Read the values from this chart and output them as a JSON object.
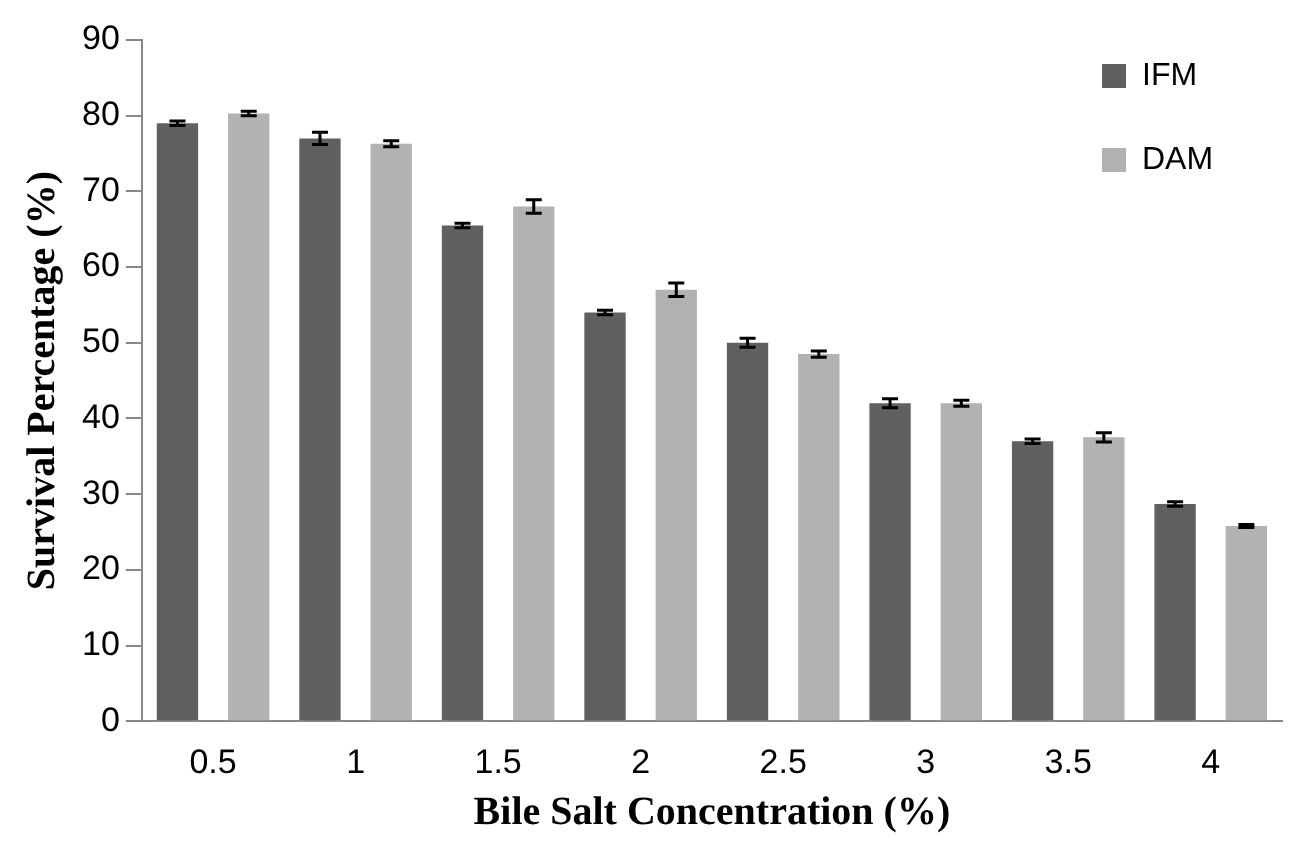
{
  "chart_data": {
    "type": "bar",
    "xlabel": "Bile Salt Concentration (%)",
    "ylabel": "Survival Percentage (%)",
    "categories": [
      "0.5",
      "1",
      "1.5",
      "2",
      "2.5",
      "3",
      "3.5",
      "4"
    ],
    "series": [
      {
        "name": "IFM",
        "color": "#606060",
        "values": [
          79,
          77,
          65.5,
          54,
          50,
          42,
          37,
          28.7
        ],
        "errors": [
          0.3,
          0.8,
          0.3,
          0.3,
          0.6,
          0.6,
          0.3,
          0.3
        ]
      },
      {
        "name": "DAM",
        "color": "#b2b2b2",
        "values": [
          80.3,
          76.3,
          68,
          57,
          48.5,
          42,
          37.5,
          25.8
        ],
        "errors": [
          0.3,
          0.4,
          0.9,
          0.9,
          0.4,
          0.4,
          0.6,
          0.2
        ]
      }
    ],
    "ylim": [
      0,
      90
    ],
    "yticks": [
      0,
      10,
      20,
      30,
      40,
      50,
      60,
      70,
      80,
      90
    ],
    "grid": false,
    "legend": "top right"
  }
}
